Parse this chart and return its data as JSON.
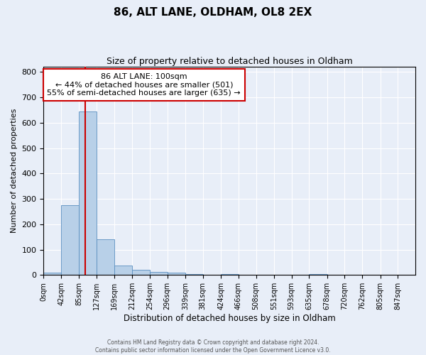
{
  "title": "86, ALT LANE, OLDHAM, OL8 2EX",
  "subtitle": "Size of property relative to detached houses in Oldham",
  "xlabel": "Distribution of detached houses by size in Oldham",
  "ylabel": "Number of detached properties",
  "bin_labels": [
    "0sqm",
    "42sqm",
    "85sqm",
    "127sqm",
    "169sqm",
    "212sqm",
    "254sqm",
    "296sqm",
    "339sqm",
    "381sqm",
    "424sqm",
    "466sqm",
    "508sqm",
    "551sqm",
    "593sqm",
    "635sqm",
    "678sqm",
    "720sqm",
    "762sqm",
    "805sqm",
    "847sqm"
  ],
  "bar_values": [
    8,
    275,
    643,
    140,
    38,
    20,
    12,
    8,
    5,
    0,
    5,
    0,
    0,
    0,
    0,
    5,
    0,
    0,
    0,
    0,
    0
  ],
  "bar_color": "#b8d0e8",
  "bar_edge_color": "#5a8fc0",
  "annotation_line1": "86 ALT LANE: 100sqm",
  "annotation_line2": "← 44% of detached houses are smaller (501)",
  "annotation_line3": "55% of semi-detached houses are larger (635) →",
  "annotation_box_color": "#ffffff",
  "annotation_box_edge_color": "#cc0000",
  "red_line_x": 100,
  "ylim": [
    0,
    820
  ],
  "yticks": [
    0,
    100,
    200,
    300,
    400,
    500,
    600,
    700,
    800
  ],
  "bin_edges": [
    0,
    42,
    85,
    127,
    169,
    212,
    254,
    296,
    339,
    381,
    424,
    466,
    508,
    551,
    593,
    635,
    678,
    720,
    762,
    805,
    847,
    889
  ],
  "xlim": [
    0,
    889
  ],
  "background_color": "#e8eef8",
  "grid_color": "#ffffff",
  "footer_line1": "Contains HM Land Registry data © Crown copyright and database right 2024.",
  "footer_line2": "Contains public sector information licensed under the Open Government Licence v3.0."
}
